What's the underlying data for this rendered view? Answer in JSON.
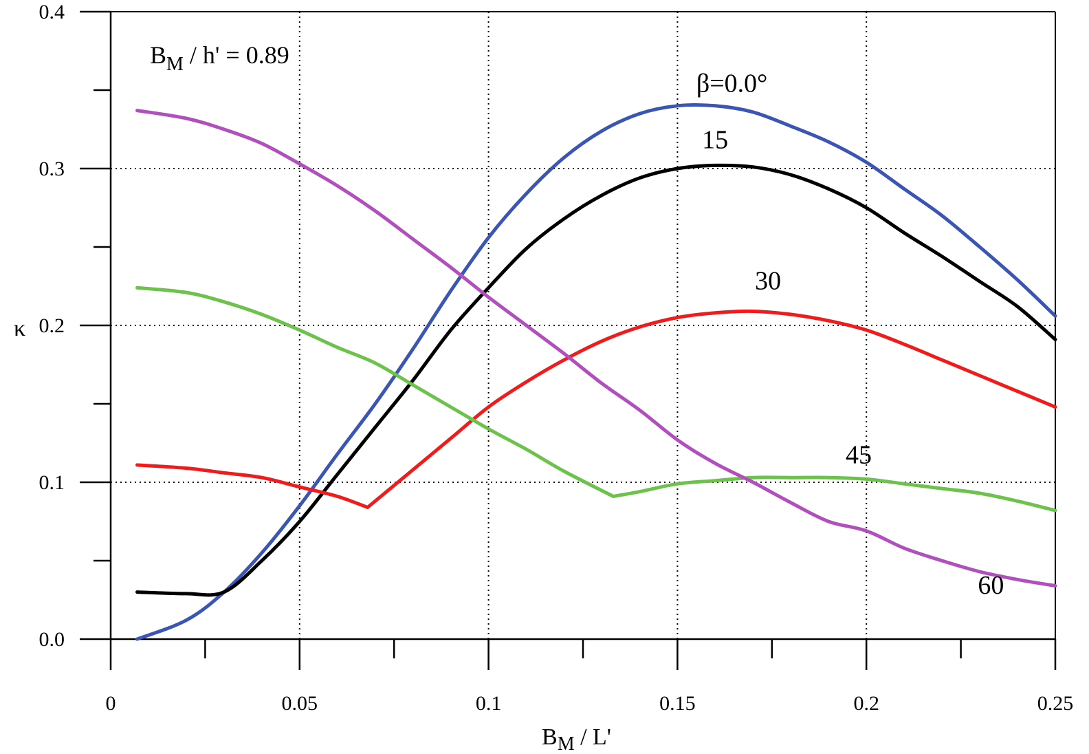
{
  "chart_data": {
    "type": "line",
    "xlabel": {
      "main": "B",
      "sub": "M",
      "rest": " / L'"
    },
    "ylabel": "κ",
    "note": {
      "main": "B",
      "sub": "M",
      "rest": " / h' = 0.89"
    },
    "xlim": [
      0,
      0.25
    ],
    "ylim": [
      0,
      0.4
    ],
    "x_ticks": [
      0,
      0.05,
      0.1,
      0.15,
      0.2,
      0.25
    ],
    "x_tick_labels": [
      "0",
      "0.05",
      "0.1",
      "0.15",
      "0.2",
      "0.25"
    ],
    "y_ticks": [
      0,
      0.1,
      0.2,
      0.3,
      0.4
    ],
    "y_tick_labels": [
      "0.0",
      "0.1",
      "0.2",
      "0.3",
      "0.4"
    ],
    "grid": true,
    "series": [
      {
        "name": "β=0.0°",
        "color": "#3a55b4",
        "label_at": [
          0.155,
          0.349
        ],
        "x": [
          0.007,
          0.02,
          0.03,
          0.04,
          0.05,
          0.06,
          0.07,
          0.08,
          0.09,
          0.1,
          0.11,
          0.12,
          0.13,
          0.14,
          0.15,
          0.16,
          0.17,
          0.18,
          0.19,
          0.2,
          0.21,
          0.22,
          0.23,
          0.24,
          0.25
        ],
        "y": [
          0.0,
          0.012,
          0.03,
          0.055,
          0.085,
          0.118,
          0.15,
          0.185,
          0.222,
          0.256,
          0.284,
          0.307,
          0.324,
          0.335,
          0.34,
          0.34,
          0.336,
          0.327,
          0.317,
          0.304,
          0.287,
          0.27,
          0.25,
          0.229,
          0.206
        ]
      },
      {
        "name": "15",
        "color": "#000000",
        "label_at": [
          0.1565,
          0.313
        ],
        "x": [
          0.007,
          0.02,
          0.03,
          0.04,
          0.05,
          0.06,
          0.07,
          0.08,
          0.09,
          0.1,
          0.11,
          0.12,
          0.13,
          0.14,
          0.15,
          0.16,
          0.17,
          0.18,
          0.19,
          0.2,
          0.21,
          0.22,
          0.23,
          0.24,
          0.25
        ],
        "y": [
          0.03,
          0.029,
          0.03,
          0.05,
          0.075,
          0.105,
          0.135,
          0.165,
          0.197,
          0.224,
          0.249,
          0.268,
          0.283,
          0.294,
          0.3,
          0.302,
          0.301,
          0.296,
          0.287,
          0.275,
          0.259,
          0.244,
          0.228,
          0.212,
          0.191
        ]
      },
      {
        "name": "30",
        "color": "#f21b1b",
        "label_at": [
          0.1705,
          0.223
        ],
        "x": [
          0.007,
          0.02,
          0.03,
          0.04,
          0.05,
          0.06,
          0.068,
          0.08,
          0.09,
          0.1,
          0.11,
          0.12,
          0.13,
          0.14,
          0.15,
          0.16,
          0.17,
          0.18,
          0.19,
          0.2,
          0.21,
          0.22,
          0.23,
          0.24,
          0.25
        ],
        "y": [
          0.111,
          0.109,
          0.106,
          0.103,
          0.097,
          0.091,
          0.084,
          0.108,
          0.128,
          0.148,
          0.164,
          0.178,
          0.19,
          0.199,
          0.205,
          0.208,
          0.209,
          0.207,
          0.203,
          0.197,
          0.188,
          0.178,
          0.168,
          0.158,
          0.148
        ]
      },
      {
        "name": "45",
        "color": "#6cc24a",
        "label_at": [
          0.1945,
          0.112
        ],
        "x": [
          0.007,
          0.02,
          0.03,
          0.04,
          0.05,
          0.06,
          0.07,
          0.08,
          0.09,
          0.1,
          0.11,
          0.12,
          0.133,
          0.14,
          0.15,
          0.16,
          0.17,
          0.18,
          0.19,
          0.2,
          0.21,
          0.22,
          0.23,
          0.24,
          0.25
        ],
        "y": [
          0.224,
          0.221,
          0.215,
          0.207,
          0.197,
          0.186,
          0.176,
          0.162,
          0.148,
          0.134,
          0.121,
          0.107,
          0.091,
          0.094,
          0.099,
          0.101,
          0.103,
          0.103,
          0.103,
          0.102,
          0.099,
          0.096,
          0.093,
          0.088,
          0.082
        ]
      },
      {
        "name": "60",
        "color": "#b24fbe",
        "label_at": [
          0.2295,
          0.029
        ],
        "x": [
          0.007,
          0.02,
          0.03,
          0.04,
          0.05,
          0.06,
          0.07,
          0.08,
          0.09,
          0.1,
          0.11,
          0.12,
          0.13,
          0.14,
          0.15,
          0.16,
          0.17,
          0.18,
          0.19,
          0.2,
          0.21,
          0.22,
          0.23,
          0.24,
          0.25
        ],
        "y": [
          0.337,
          0.332,
          0.325,
          0.316,
          0.303,
          0.289,
          0.273,
          0.255,
          0.237,
          0.218,
          0.2,
          0.182,
          0.163,
          0.146,
          0.127,
          0.112,
          0.1,
          0.087,
          0.075,
          0.069,
          0.058,
          0.05,
          0.043,
          0.038,
          0.034
        ]
      }
    ]
  }
}
